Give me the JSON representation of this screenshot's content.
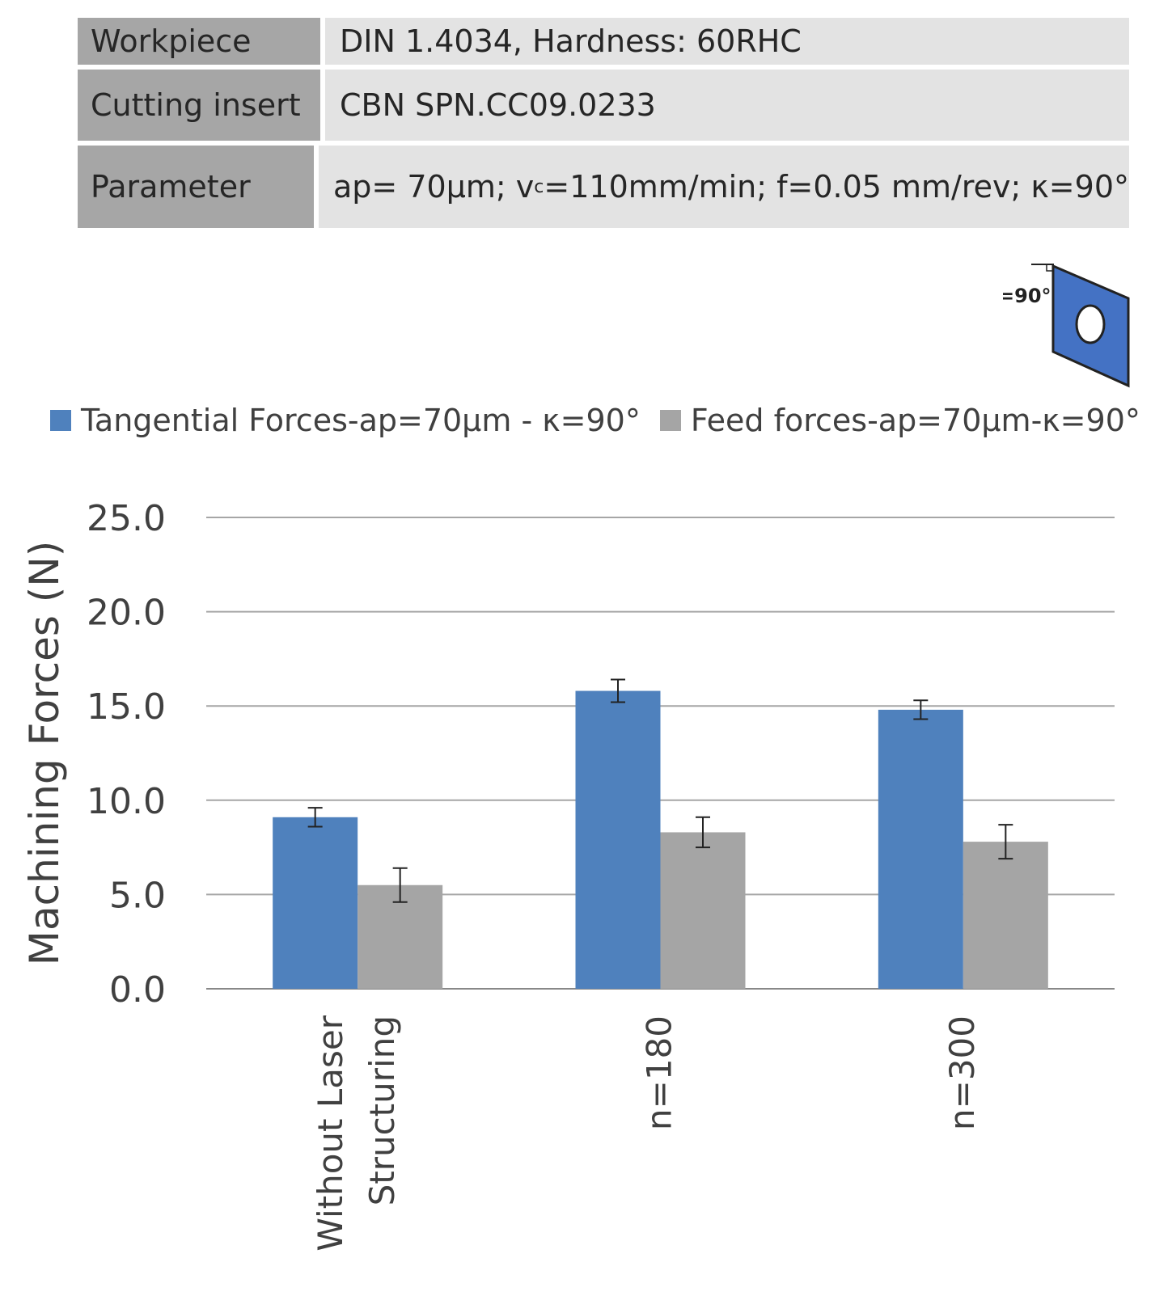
{
  "table": {
    "rows": [
      {
        "key": "Workpiece",
        "value": "DIN 1.4034, Hardness: 60RHC"
      },
      {
        "key": "Cutting insert",
        "value": "CBN SPN.CC09.0233"
      },
      {
        "key": "Parameter",
        "value_pre": "ap= 70µm; v",
        "value_sub": "c",
        "value_post": "=110mm/min; f=0.05 mm/rev; κ=90°"
      }
    ]
  },
  "insert_icon": {
    "label": "κ=90°",
    "color": "#4472c4"
  },
  "chart_data": {
    "type": "bar",
    "ylabel": "Machining Forces (N)",
    "ylim": [
      0,
      25
    ],
    "yticks": [
      0.0,
      5.0,
      10.0,
      15.0,
      20.0,
      25.0
    ],
    "ytick_labels": [
      "0.0",
      "5.0",
      "10.0",
      "15.0",
      "20.0",
      "25.0"
    ],
    "grid": true,
    "legend_position": "top",
    "categories": [
      {
        "lines": [
          "Without Laser",
          "Structuring"
        ]
      },
      {
        "lines": [
          "n=180"
        ]
      },
      {
        "lines": [
          "n=300"
        ]
      }
    ],
    "series": [
      {
        "name": "Tangential Forces-ap=70µm - κ=90°",
        "color": "#4f81bd",
        "values": [
          9.1,
          15.8,
          14.8
        ],
        "errors": [
          0.5,
          0.6,
          0.5
        ]
      },
      {
        "name": "Feed forces-ap=70µm-κ=90°",
        "color": "#a5a5a5",
        "values": [
          5.5,
          8.3,
          7.8
        ],
        "errors": [
          0.9,
          0.8,
          0.9
        ]
      }
    ]
  }
}
